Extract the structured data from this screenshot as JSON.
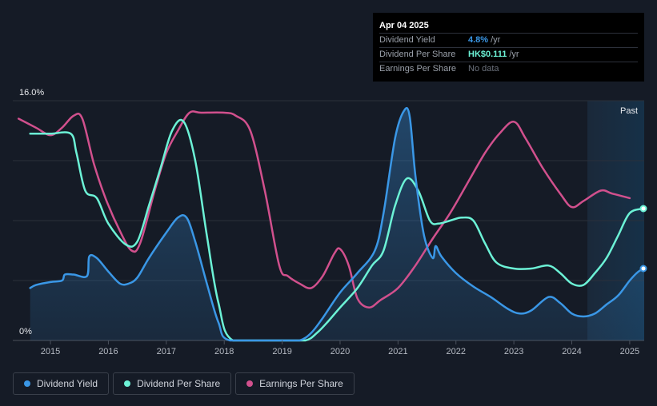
{
  "tooltip": {
    "date": "Apr 04 2025",
    "rows": [
      {
        "label": "Dividend Yield",
        "value": "4.8%",
        "unit": "/yr",
        "color": "#3a97e6"
      },
      {
        "label": "Dividend Per Share",
        "value": "HK$0.111",
        "unit": "/yr",
        "color": "#6cf2d6"
      },
      {
        "label": "Earnings Per Share",
        "value": "No data",
        "unit": "",
        "color": "#6b717c"
      }
    ]
  },
  "legend": [
    {
      "label": "Dividend Yield",
      "color": "#3a97e6"
    },
    {
      "label": "Dividend Per Share",
      "color": "#6cf2d6"
    },
    {
      "label": "Earnings Per Share",
      "color": "#d1508d"
    }
  ],
  "chart_data": {
    "type": "line",
    "y_top_label": "16.0%",
    "y_bottom_label": "0%",
    "ylim": [
      0,
      16
    ],
    "xlim": [
      2014.35,
      2025.25
    ],
    "x_ticks": [
      2015,
      2016,
      2017,
      2018,
      2019,
      2020,
      2021,
      2022,
      2023,
      2024,
      2025
    ],
    "x_tick_labels": [
      "2015",
      "2016",
      "2017",
      "2018",
      "2019",
      "2020",
      "2021",
      "2022",
      "2023",
      "2024",
      "2025"
    ],
    "past_label": "Past",
    "past_start": 2024.27,
    "grid": true,
    "series": [
      {
        "name": "Dividend Yield",
        "color": "#3a97e6",
        "fill": true,
        "points": [
          [
            2014.65,
            3.5
          ],
          [
            2014.75,
            3.7
          ],
          [
            2015.0,
            3.9
          ],
          [
            2015.2,
            4.0
          ],
          [
            2015.25,
            4.4
          ],
          [
            2015.4,
            4.4
          ],
          [
            2015.63,
            4.3
          ],
          [
            2015.67,
            5.6
          ],
          [
            2015.8,
            5.5
          ],
          [
            2016.0,
            4.6
          ],
          [
            2016.2,
            3.8
          ],
          [
            2016.35,
            3.8
          ],
          [
            2016.5,
            4.2
          ],
          [
            2016.7,
            5.5
          ],
          [
            2017.0,
            7.2
          ],
          [
            2017.2,
            8.2
          ],
          [
            2017.35,
            8.2
          ],
          [
            2017.5,
            6.6
          ],
          [
            2017.7,
            3.8
          ],
          [
            2017.9,
            1.2
          ],
          [
            2018.1,
            0.0
          ],
          [
            2019.0,
            0.0
          ],
          [
            2019.3,
            0.0
          ],
          [
            2019.5,
            0.5
          ],
          [
            2019.7,
            1.5
          ],
          [
            2020.0,
            3.2
          ],
          [
            2020.3,
            4.5
          ],
          [
            2020.6,
            6.0
          ],
          [
            2020.75,
            8.5
          ],
          [
            2020.95,
            13.5
          ],
          [
            2021.1,
            15.3
          ],
          [
            2021.2,
            15.0
          ],
          [
            2021.3,
            11.0
          ],
          [
            2021.45,
            7.0
          ],
          [
            2021.6,
            5.5
          ],
          [
            2021.65,
            6.3
          ],
          [
            2021.75,
            5.6
          ],
          [
            2022.0,
            4.5
          ],
          [
            2022.3,
            3.6
          ],
          [
            2022.6,
            2.9
          ],
          [
            2022.9,
            2.1
          ],
          [
            2023.1,
            1.8
          ],
          [
            2023.3,
            2.0
          ],
          [
            2023.6,
            2.9
          ],
          [
            2023.8,
            2.5
          ],
          [
            2024.0,
            1.8
          ],
          [
            2024.2,
            1.6
          ],
          [
            2024.4,
            1.8
          ],
          [
            2024.6,
            2.4
          ],
          [
            2024.8,
            3.0
          ],
          [
            2025.0,
            4.0
          ],
          [
            2025.15,
            4.6
          ],
          [
            2025.25,
            4.8
          ]
        ]
      },
      {
        "name": "Dividend Per Share",
        "color": "#6cf2d6",
        "fill": false,
        "points": [
          [
            2014.65,
            13.8
          ],
          [
            2014.75,
            13.8
          ],
          [
            2015.0,
            13.8
          ],
          [
            2015.35,
            13.8
          ],
          [
            2015.45,
            12.5
          ],
          [
            2015.6,
            10.0
          ],
          [
            2015.8,
            9.5
          ],
          [
            2016.0,
            7.8
          ],
          [
            2016.3,
            6.4
          ],
          [
            2016.5,
            6.6
          ],
          [
            2016.7,
            9.0
          ],
          [
            2016.9,
            11.5
          ],
          [
            2017.1,
            14.0
          ],
          [
            2017.3,
            14.6
          ],
          [
            2017.5,
            12.0
          ],
          [
            2017.7,
            7.0
          ],
          [
            2017.9,
            2.5
          ],
          [
            2018.15,
            0.0
          ],
          [
            2019.0,
            0.0
          ],
          [
            2019.4,
            0.0
          ],
          [
            2019.6,
            0.5
          ],
          [
            2019.8,
            1.3
          ],
          [
            2020.0,
            2.2
          ],
          [
            2020.3,
            3.5
          ],
          [
            2020.55,
            5.0
          ],
          [
            2020.75,
            6.0
          ],
          [
            2020.95,
            9.0
          ],
          [
            2021.15,
            10.8
          ],
          [
            2021.35,
            10.0
          ],
          [
            2021.55,
            8.0
          ],
          [
            2021.7,
            7.8
          ],
          [
            2021.9,
            8.0
          ],
          [
            2022.1,
            8.2
          ],
          [
            2022.3,
            8.0
          ],
          [
            2022.5,
            6.5
          ],
          [
            2022.7,
            5.2
          ],
          [
            2023.0,
            4.8
          ],
          [
            2023.3,
            4.8
          ],
          [
            2023.6,
            5.0
          ],
          [
            2023.8,
            4.5
          ],
          [
            2024.0,
            3.8
          ],
          [
            2024.2,
            3.7
          ],
          [
            2024.4,
            4.5
          ],
          [
            2024.6,
            5.5
          ],
          [
            2024.8,
            7.0
          ],
          [
            2025.0,
            8.5
          ],
          [
            2025.25,
            8.8
          ]
        ]
      },
      {
        "name": "Earnings Per Share",
        "color": "#d1508d",
        "fill": false,
        "points": [
          [
            2014.45,
            14.8
          ],
          [
            2014.75,
            14.2
          ],
          [
            2015.0,
            13.7
          ],
          [
            2015.2,
            14.2
          ],
          [
            2015.4,
            15.0
          ],
          [
            2015.55,
            14.8
          ],
          [
            2015.75,
            11.8
          ],
          [
            2015.95,
            9.5
          ],
          [
            2016.2,
            7.3
          ],
          [
            2016.4,
            6.0
          ],
          [
            2016.55,
            6.5
          ],
          [
            2016.8,
            10.0
          ],
          [
            2017.0,
            12.5
          ],
          [
            2017.2,
            14.0
          ],
          [
            2017.4,
            15.2
          ],
          [
            2017.6,
            15.2
          ],
          [
            2018.0,
            15.2
          ],
          [
            2018.2,
            15.0
          ],
          [
            2018.45,
            14.0
          ],
          [
            2018.7,
            10.0
          ],
          [
            2018.95,
            5.0
          ],
          [
            2019.1,
            4.3
          ],
          [
            2019.3,
            3.8
          ],
          [
            2019.5,
            3.5
          ],
          [
            2019.7,
            4.3
          ],
          [
            2019.9,
            5.8
          ],
          [
            2020.0,
            6.1
          ],
          [
            2020.15,
            5.0
          ],
          [
            2020.3,
            2.8
          ],
          [
            2020.5,
            2.2
          ],
          [
            2020.7,
            2.7
          ],
          [
            2021.0,
            3.5
          ],
          [
            2021.3,
            5.0
          ],
          [
            2021.6,
            6.8
          ],
          [
            2021.9,
            8.5
          ],
          [
            2022.2,
            10.5
          ],
          [
            2022.5,
            12.5
          ],
          [
            2022.75,
            13.8
          ],
          [
            2023.0,
            14.6
          ],
          [
            2023.2,
            13.5
          ],
          [
            2023.5,
            11.5
          ],
          [
            2023.8,
            9.8
          ],
          [
            2024.0,
            8.9
          ],
          [
            2024.2,
            9.3
          ],
          [
            2024.5,
            10.0
          ],
          [
            2024.7,
            9.8
          ],
          [
            2025.0,
            9.5
          ]
        ]
      }
    ],
    "end_markers": [
      {
        "series": "Dividend Yield",
        "x": 2025.25,
        "y": 4.8
      },
      {
        "series": "Dividend Per Share",
        "x": 2025.25,
        "y": 8.8
      }
    ]
  }
}
